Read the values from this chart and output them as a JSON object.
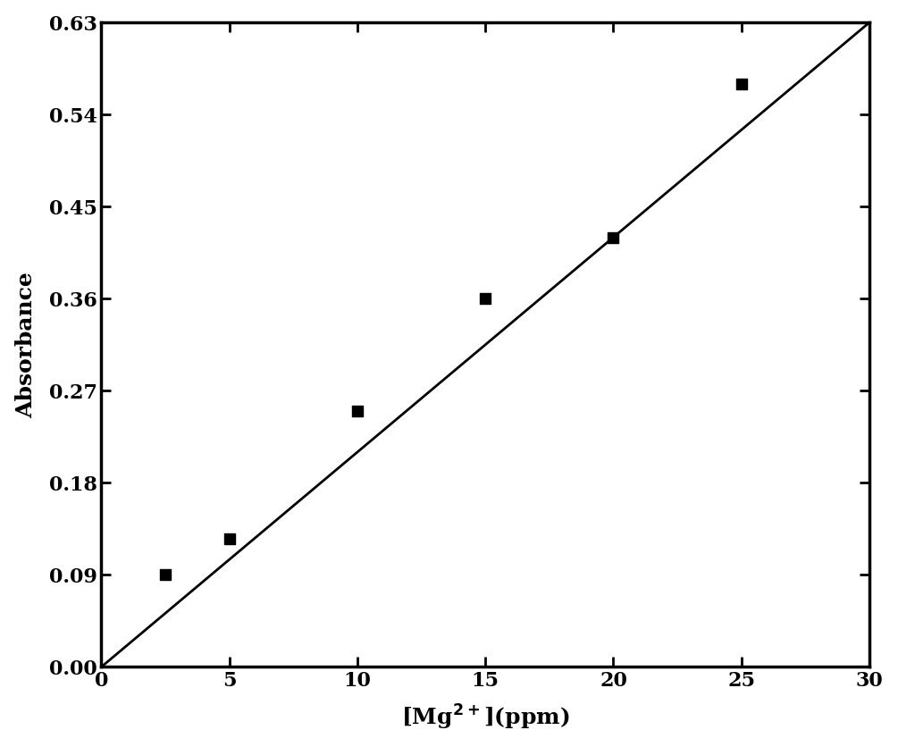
{
  "x_data": [
    2.5,
    5,
    10,
    15,
    20,
    25
  ],
  "y_data": [
    0.09,
    0.125,
    0.25,
    0.36,
    0.42,
    0.57
  ],
  "line_x": [
    0,
    30
  ],
  "line_y": [
    0.0,
    0.63
  ],
  "xlim": [
    0,
    30
  ],
  "ylim": [
    0.0,
    0.63
  ],
  "xticks": [
    0,
    5,
    10,
    15,
    20,
    25,
    30
  ],
  "yticks": [
    0.0,
    0.09,
    0.18,
    0.27,
    0.36,
    0.45,
    0.54,
    0.63
  ],
  "xlabel": "[Mg$^{2+}$](ppm)",
  "ylabel": "Absorbance",
  "marker_color": "black",
  "marker_size": 72,
  "line_color": "black",
  "line_width": 2.0,
  "background_color": "white",
  "tick_fontsize": 16,
  "label_fontsize": 18
}
